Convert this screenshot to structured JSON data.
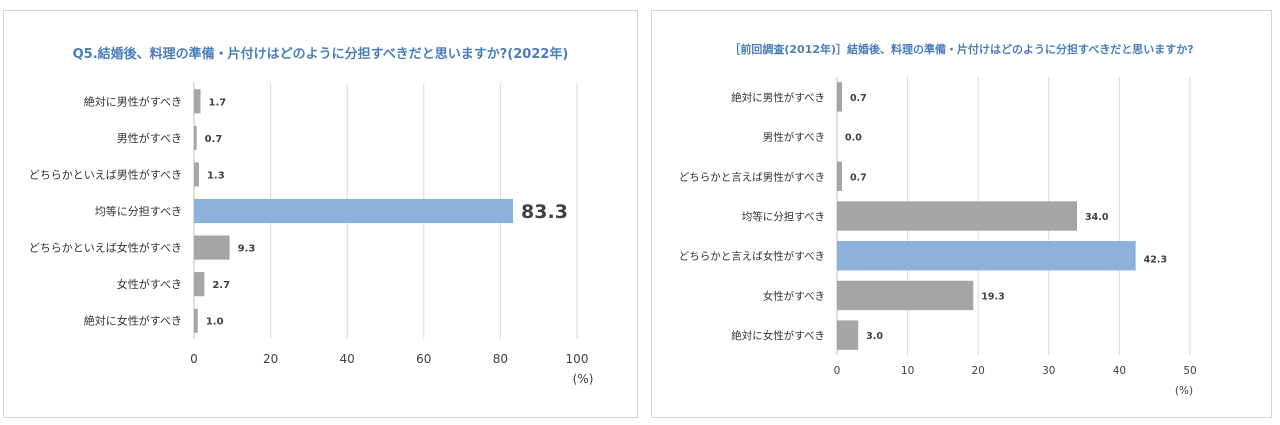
{
  "colors": {
    "bar": "#a5a5a5",
    "highlight": "#8eb1db",
    "grid": "#d9d9d9",
    "title": "#4a7ebb",
    "highlight_label": "#4a7ebb"
  },
  "chart_data": [
    {
      "type": "bar",
      "orientation": "horizontal",
      "title": "Q5.結婚後、料理の準備・片付けはどのように分担すべきだと思いますか?(2022年)",
      "categories": [
        "絶対に男性がすべき",
        "男性がすべき",
        "どちらかといえば男性がすべき",
        "均等に分担すべき",
        "どちらかといえば女性がすべき",
        "女性がすべき",
        "絶対に女性がすべき"
      ],
      "values": [
        1.7,
        0.7,
        1.3,
        83.3,
        9.3,
        2.7,
        1.0
      ],
      "value_labels": [
        "1.7",
        "0.7",
        "1.3",
        "83.3",
        "9.3",
        "2.7",
        "1.0"
      ],
      "highlight_index": 3,
      "xlim": [
        0,
        100
      ],
      "xticks": [
        0,
        20,
        40,
        60,
        80,
        100
      ],
      "xlabel": "(%)",
      "grid": true
    },
    {
      "type": "bar",
      "orientation": "horizontal",
      "title": "［前回調査(2012年)］結婚後、料理の準備・片付けはどのように分担すべきだと思いますか?",
      "categories": [
        "絶対に男性がすべき",
        "男性がすべき",
        "どちらかと言えば男性がすべき",
        "均等に分担すべき",
        "どちらかと言えば女性がすべき",
        "女性がすべき",
        "絶対に女性がすべき"
      ],
      "values": [
        0.7,
        0.0,
        0.7,
        34.0,
        42.3,
        19.3,
        3.0
      ],
      "value_labels": [
        "0.7",
        "0.0",
        "0.7",
        "34.0",
        "42.3",
        "19.3",
        "3.0"
      ],
      "highlight_index": 4,
      "xlim": [
        0,
        50
      ],
      "xticks": [
        0,
        10,
        20,
        30,
        40,
        50
      ],
      "xlabel": "(%)",
      "grid": true
    }
  ]
}
